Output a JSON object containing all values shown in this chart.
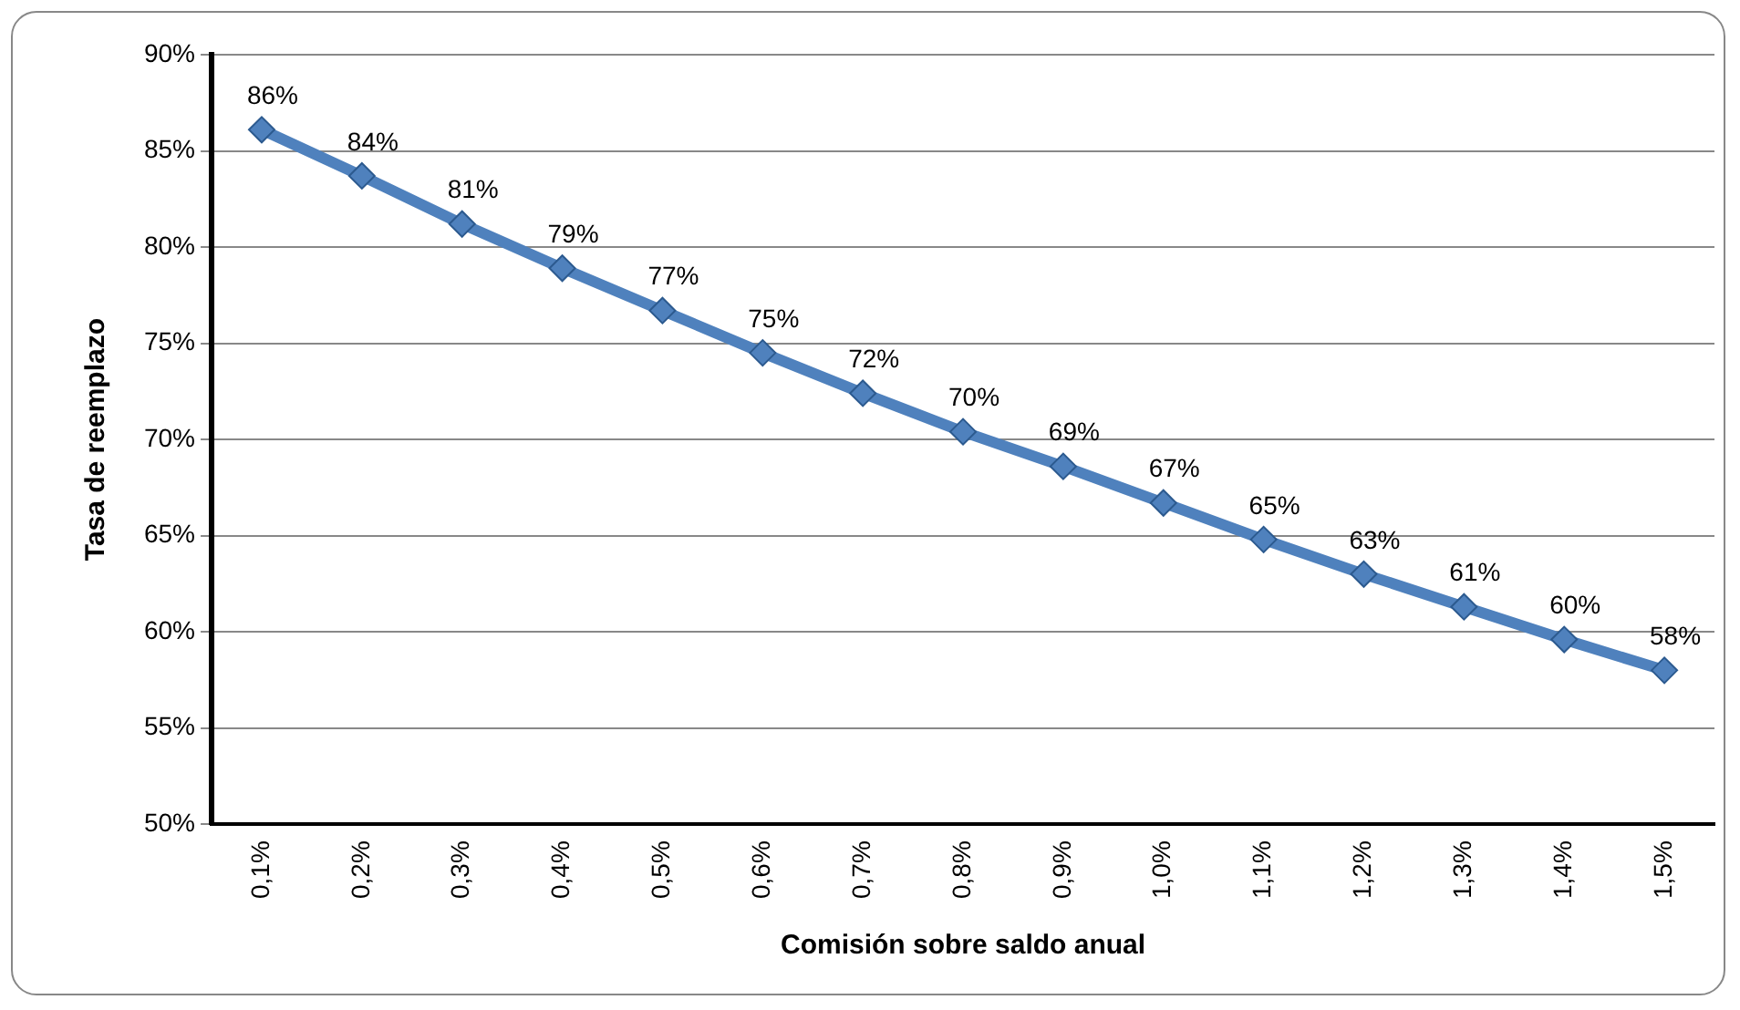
{
  "chart_data": {
    "type": "line",
    "xlabel": "Comisión sobre saldo anual",
    "ylabel": "Tasa de reemplazo",
    "categories": [
      "0,1%",
      "0,2%",
      "0,3%",
      "0,4%",
      "0,5%",
      "0,6%",
      "0,7%",
      "0,8%",
      "0,9%",
      "1,0%",
      "1,1%",
      "1,2%",
      "1,3%",
      "1,4%",
      "1,5%"
    ],
    "series": [
      {
        "color": "#4f81bd",
        "values": [
          86.1,
          83.7,
          81.2,
          78.9,
          76.7,
          74.5,
          72.4,
          70.4,
          68.6,
          66.7,
          64.8,
          63.0,
          61.3,
          59.6,
          58.0
        ],
        "value_labels": [
          "86%",
          "84%",
          "81%",
          "79%",
          "77%",
          "75%",
          "72%",
          "70%",
          "69%",
          "67%",
          "65%",
          "63%",
          "61%",
          "60%",
          "58%"
        ]
      }
    ],
    "ylim": [
      50,
      90
    ],
    "yticks": [
      {
        "value": 50,
        "label": "50%"
      },
      {
        "value": 55,
        "label": "55%"
      },
      {
        "value": 60,
        "label": "60%"
      },
      {
        "value": 65,
        "label": "65%"
      },
      {
        "value": 70,
        "label": "70%"
      },
      {
        "value": 75,
        "label": "75%"
      },
      {
        "value": 80,
        "label": "80%"
      },
      {
        "value": 85,
        "label": "85%"
      },
      {
        "value": 90,
        "label": "90%"
      }
    ],
    "grid": "y",
    "legend": false,
    "marker": "diamond",
    "line_style": "solid"
  }
}
